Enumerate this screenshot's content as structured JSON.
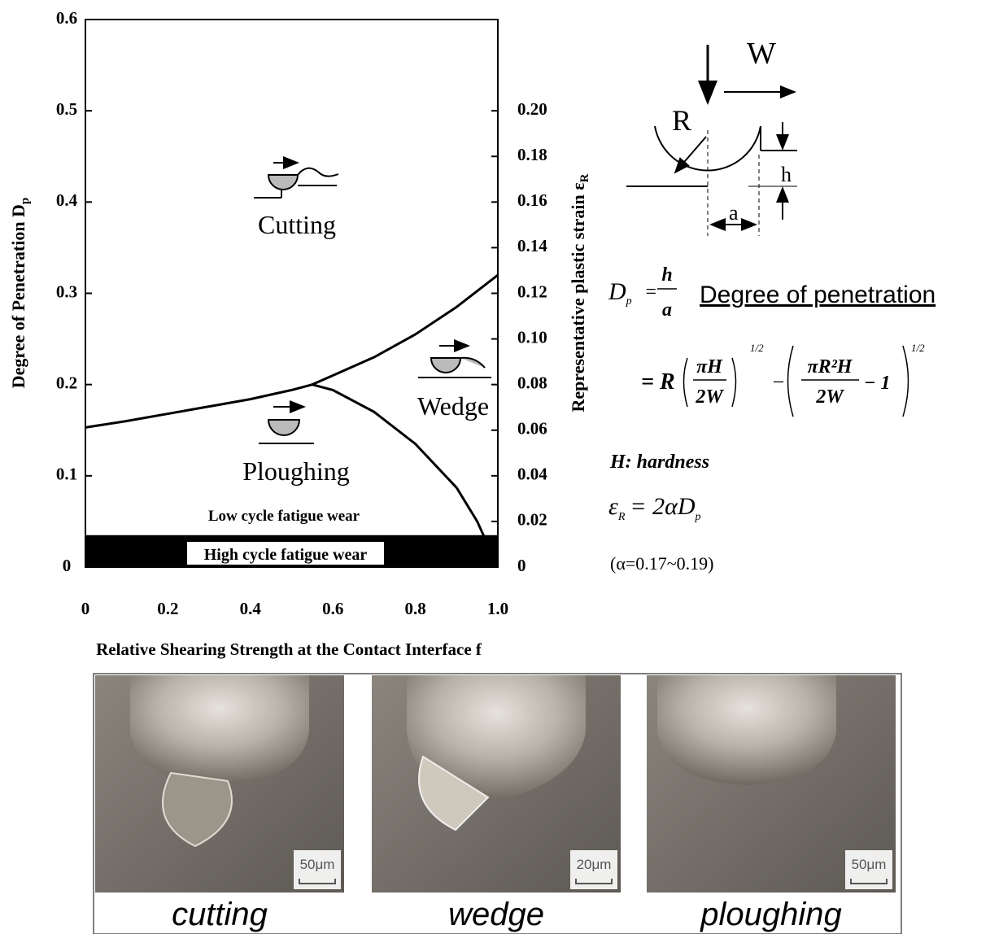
{
  "chart_data": {
    "type": "line",
    "xlabel": "Relative Shearing Strength at the Contact Interface f",
    "ylabel": "Degree of Penetration D",
    "ylabel_sub": "p",
    "y2label": "Representative plastic strain ε",
    "y2label_sub": "R",
    "xlim": [
      0,
      1
    ],
    "xticks": [
      0,
      0.2,
      0.4,
      0.6,
      0.8,
      {
        "value": 1,
        "label": "1.0"
      }
    ],
    "ylim": [
      0,
      0.6
    ],
    "yticks": [
      0,
      0.1,
      0.2,
      0.3,
      0.4,
      0.5,
      0.6
    ],
    "y2lim": [
      0,
      0.24
    ],
    "y2ticks": [
      0,
      0.02,
      0.04,
      0.06,
      0.08,
      {
        "value": 0.1,
        "label": "0.10"
      },
      0.12,
      0.14,
      0.16,
      0.18,
      {
        "value": 0.2,
        "label": "0.20"
      }
    ],
    "series": [
      {
        "color": "#000000",
        "x": [
          0,
          0.1,
          0.2,
          0.3,
          0.4,
          0.5,
          0.55
        ],
        "values": [
          0.153,
          0.16,
          0.168,
          0.176,
          0.184,
          0.194,
          0.2
        ]
      },
      {
        "color": "#000000",
        "x": [
          0.55,
          0.6,
          0.7,
          0.8,
          0.9,
          1
        ],
        "values": [
          0.2,
          0.21,
          0.23,
          0.255,
          0.285,
          0.32
        ]
      },
      {
        "color": "#000000",
        "x": [
          0.55,
          0.6,
          0.7,
          0.8,
          0.9,
          0.95,
          1
        ],
        "values": [
          0.2,
          0.194,
          0.17,
          0.135,
          0.087,
          0.05,
          0
        ]
      }
    ],
    "high_cycle_band": [
      0,
      0.035
    ],
    "annotations": [
      "Cutting",
      "Wedge",
      "Ploughing",
      "Low cycle fatigue wear",
      "High cycle fatigue wear"
    ]
  },
  "diagram": {
    "W": "W",
    "R": "R",
    "h": "h",
    "a": "a"
  },
  "formulas": {
    "dp_D": "D",
    "dp_sub": "p",
    "dp_eq": "=",
    "dp_num": "h",
    "dp_den": "a",
    "dp_name": "Degree of penetration",
    "f2_lead": "= R",
    "f2_num1": "πH",
    "f2_den1": "2W",
    "f2_exp1": "1/2",
    "f2_minus": "−",
    "f2_num2": "πR²H",
    "f2_den2": "2W",
    "f2_tail": "− 1",
    "f2_exp2": "1/2",
    "hardness": "H: hardness",
    "eps": "ε",
    "eps_sub": "R",
    "eps_rhs": "= 2αD",
    "eps_rhs_sub": "p",
    "alpha": "(α=0.17~0.19)"
  },
  "photos": [
    {
      "scale": "50μm",
      "caption": "cutting"
    },
    {
      "scale": "20μm",
      "caption": "wedge"
    },
    {
      "scale": "50μm",
      "caption": "ploughing"
    }
  ]
}
